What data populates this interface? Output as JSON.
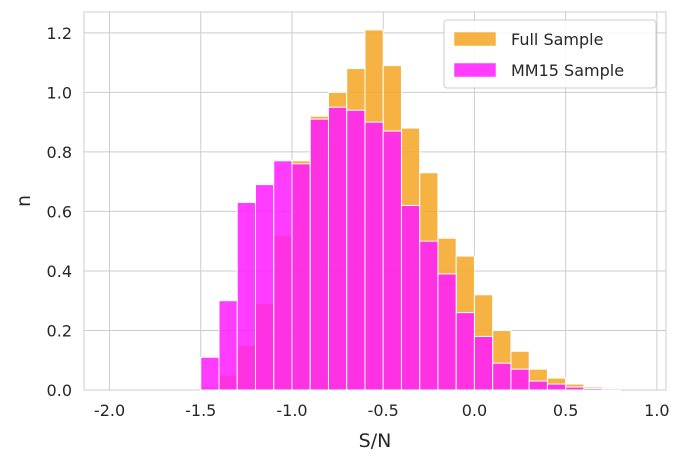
{
  "chart_data": {
    "type": "bar",
    "xlabel": "S/N",
    "ylabel": "n",
    "xlim": [
      -2.14,
      1.05
    ],
    "ylim": [
      0,
      1.27
    ],
    "grid": true,
    "legend_position": "top-right",
    "x_ticks": [
      "-2.0",
      "-1.5",
      "-1.0",
      "-0.5",
      "0.0",
      "0.5",
      "1.0"
    ],
    "x_tick_values": [
      -2.0,
      -1.5,
      -1.0,
      -0.5,
      0.0,
      0.5,
      1.0
    ],
    "y_ticks": [
      "0.0",
      "0.2",
      "0.4",
      "0.6",
      "0.8",
      "1.0",
      "1.2"
    ],
    "y_tick_values": [
      0.0,
      0.2,
      0.4,
      0.6,
      0.8,
      1.0,
      1.2
    ],
    "bin_width": 0.1,
    "series": [
      {
        "name": "Full Sample",
        "color": "#f5a623",
        "bin_starts": [
          -1.5,
          -1.4,
          -1.3,
          -1.2,
          -1.1,
          -1.0,
          -0.9,
          -0.8,
          -0.7,
          -0.6,
          -0.5,
          -0.4,
          -0.3,
          -0.2,
          -0.1,
          0.0,
          0.1,
          0.2,
          0.3,
          0.4,
          0.5,
          0.6,
          0.7
        ],
        "values": [
          0.01,
          0.05,
          0.15,
          0.29,
          0.52,
          0.77,
          0.92,
          1.0,
          1.08,
          1.21,
          1.09,
          0.88,
          0.73,
          0.51,
          0.45,
          0.32,
          0.2,
          0.13,
          0.07,
          0.04,
          0.02,
          0.01,
          0.006
        ]
      },
      {
        "name": "MM15 Sample",
        "color": "#ff1aff",
        "bin_starts": [
          -1.5,
          -1.4,
          -1.3,
          -1.2,
          -1.1,
          -1.0,
          -0.9,
          -0.8,
          -0.7,
          -0.6,
          -0.5,
          -0.4,
          -0.3,
          -0.2,
          -0.1,
          0.0,
          0.1,
          0.2,
          0.3,
          0.4,
          0.5,
          0.6,
          0.7
        ],
        "values": [
          0.11,
          0.3,
          0.63,
          0.69,
          0.77,
          0.76,
          0.91,
          0.95,
          0.94,
          0.9,
          0.87,
          0.62,
          0.5,
          0.39,
          0.26,
          0.18,
          0.09,
          0.07,
          0.03,
          0.02,
          0.01,
          0.005,
          0.004
        ]
      }
    ]
  }
}
